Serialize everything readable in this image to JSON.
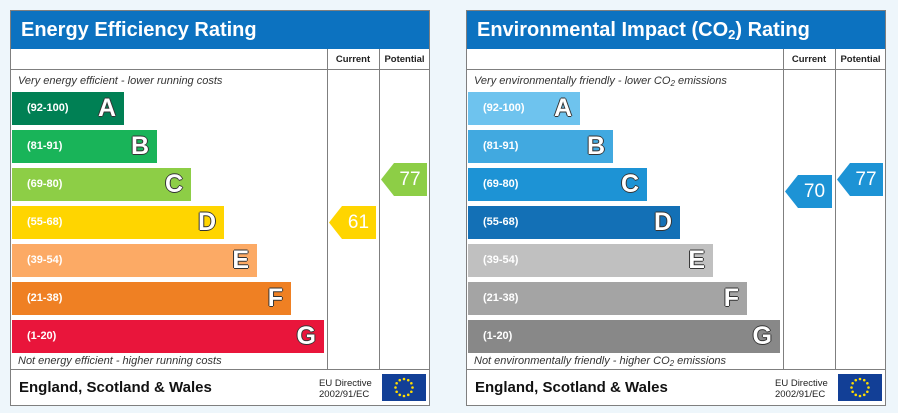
{
  "chart_data": [
    {
      "type": "bar",
      "title": "Energy Efficiency Rating",
      "columns": [
        "Current",
        "Potential"
      ],
      "top_note": "Very energy efficient - lower running costs",
      "bottom_note": "Not energy efficient - higher running costs",
      "categories": [
        "A",
        "B",
        "C",
        "D",
        "E",
        "F",
        "G"
      ],
      "ranges": [
        "(92-100)",
        "(81-91)",
        "(69-80)",
        "(55-68)",
        "(39-54)",
        "(21-38)",
        "(1-20)"
      ],
      "colors": [
        "#008054",
        "#19b459",
        "#8dce46",
        "#ffd500",
        "#fcaa65",
        "#ef8023",
        "#e9153b"
      ],
      "current": 61,
      "potential": 77,
      "current_color": "#ffd500",
      "potential_color": "#8dce46",
      "footer": "England, Scotland & Wales",
      "directive": [
        "EU Directive",
        "2002/91/EC"
      ]
    },
    {
      "type": "bar",
      "title_main": "Environmental Impact (CO",
      "title_sub": "2",
      "title_end": ") Rating",
      "columns": [
        "Current",
        "Potential"
      ],
      "top_note_main": "Very environmentally friendly - lower CO",
      "top_note_sub": "2",
      "top_note_end": " emissions",
      "bottom_note_main": "Not environmentally friendly - higher CO",
      "bottom_note_sub": "2",
      "bottom_note_end": " emissions",
      "categories": [
        "A",
        "B",
        "C",
        "D",
        "E",
        "F",
        "G"
      ],
      "ranges": [
        "(92-100)",
        "(81-91)",
        "(69-80)",
        "(55-68)",
        "(39-54)",
        "(21-38)",
        "(1-20)"
      ],
      "colors": [
        "#6ec3ee",
        "#41a9e0",
        "#1d93d5",
        "#1370b6",
        "#c0c0c0",
        "#a4a4a4",
        "#888888"
      ],
      "current": 70,
      "potential": 77,
      "current_color": "#1d93d5",
      "potential_color": "#1d93d5",
      "footer": "England, Scotland & Wales",
      "directive": [
        "EU Directive",
        "2002/91/EC"
      ]
    }
  ]
}
